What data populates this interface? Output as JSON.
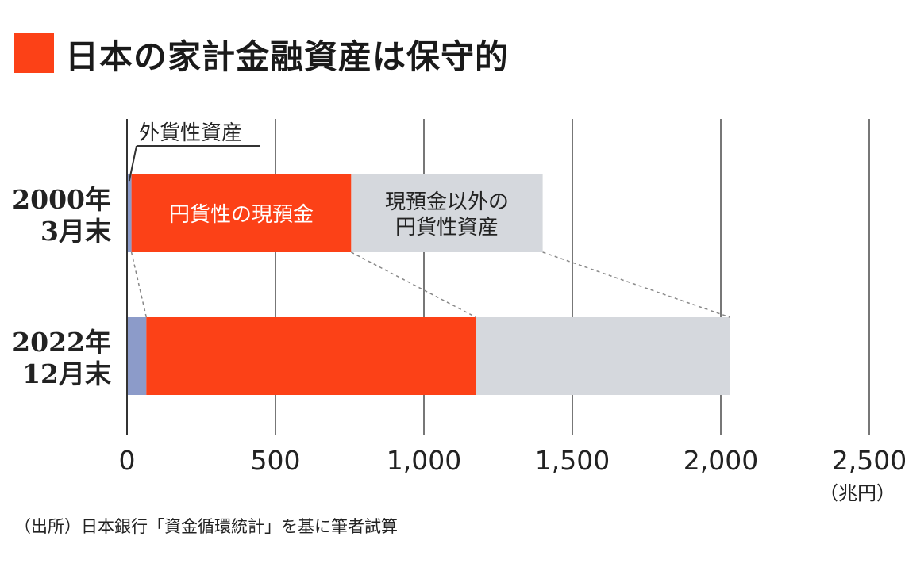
{
  "title": "日本の家計金融資産は保守的",
  "source": "（出所）日本銀行「資金循環統計」を基に筆者試算",
  "colors": {
    "accent": "#fc4117",
    "foreign": "#8c9bc9",
    "other": "#d5d8dd",
    "grid": "#777777"
  },
  "chart_data": {
    "type": "bar",
    "orientation": "horizontal",
    "stacked": true,
    "categories": [
      [
        "2000年",
        "3月末"
      ],
      [
        "2022年",
        "12月末"
      ]
    ],
    "series": [
      {
        "name": "外貨性資産",
        "values": [
          15,
          65
        ]
      },
      {
        "name": "円貨性の現預金",
        "values": [
          740,
          1110
        ]
      },
      {
        "name": "現預金以外の円貨性資産",
        "values": [
          645,
          855
        ]
      }
    ],
    "segment_labels": [
      {
        "category": 0,
        "series": 1,
        "lines": [
          "円貨性の現預金"
        ]
      },
      {
        "category": 0,
        "series": 2,
        "lines": [
          "現預金以外の",
          "円貨性資産"
        ]
      }
    ],
    "callout": {
      "series": 0,
      "category": 0,
      "text": "外貨性資産"
    },
    "xlim": [
      0,
      2500
    ],
    "xticks": [
      0,
      500,
      1000,
      1500,
      2000,
      2500
    ],
    "xtick_labels": [
      "0",
      "500",
      "1,000",
      "1,500",
      "2,000",
      "2,500"
    ],
    "xunit": "（兆円）",
    "grid": true,
    "connector_lines": true
  }
}
